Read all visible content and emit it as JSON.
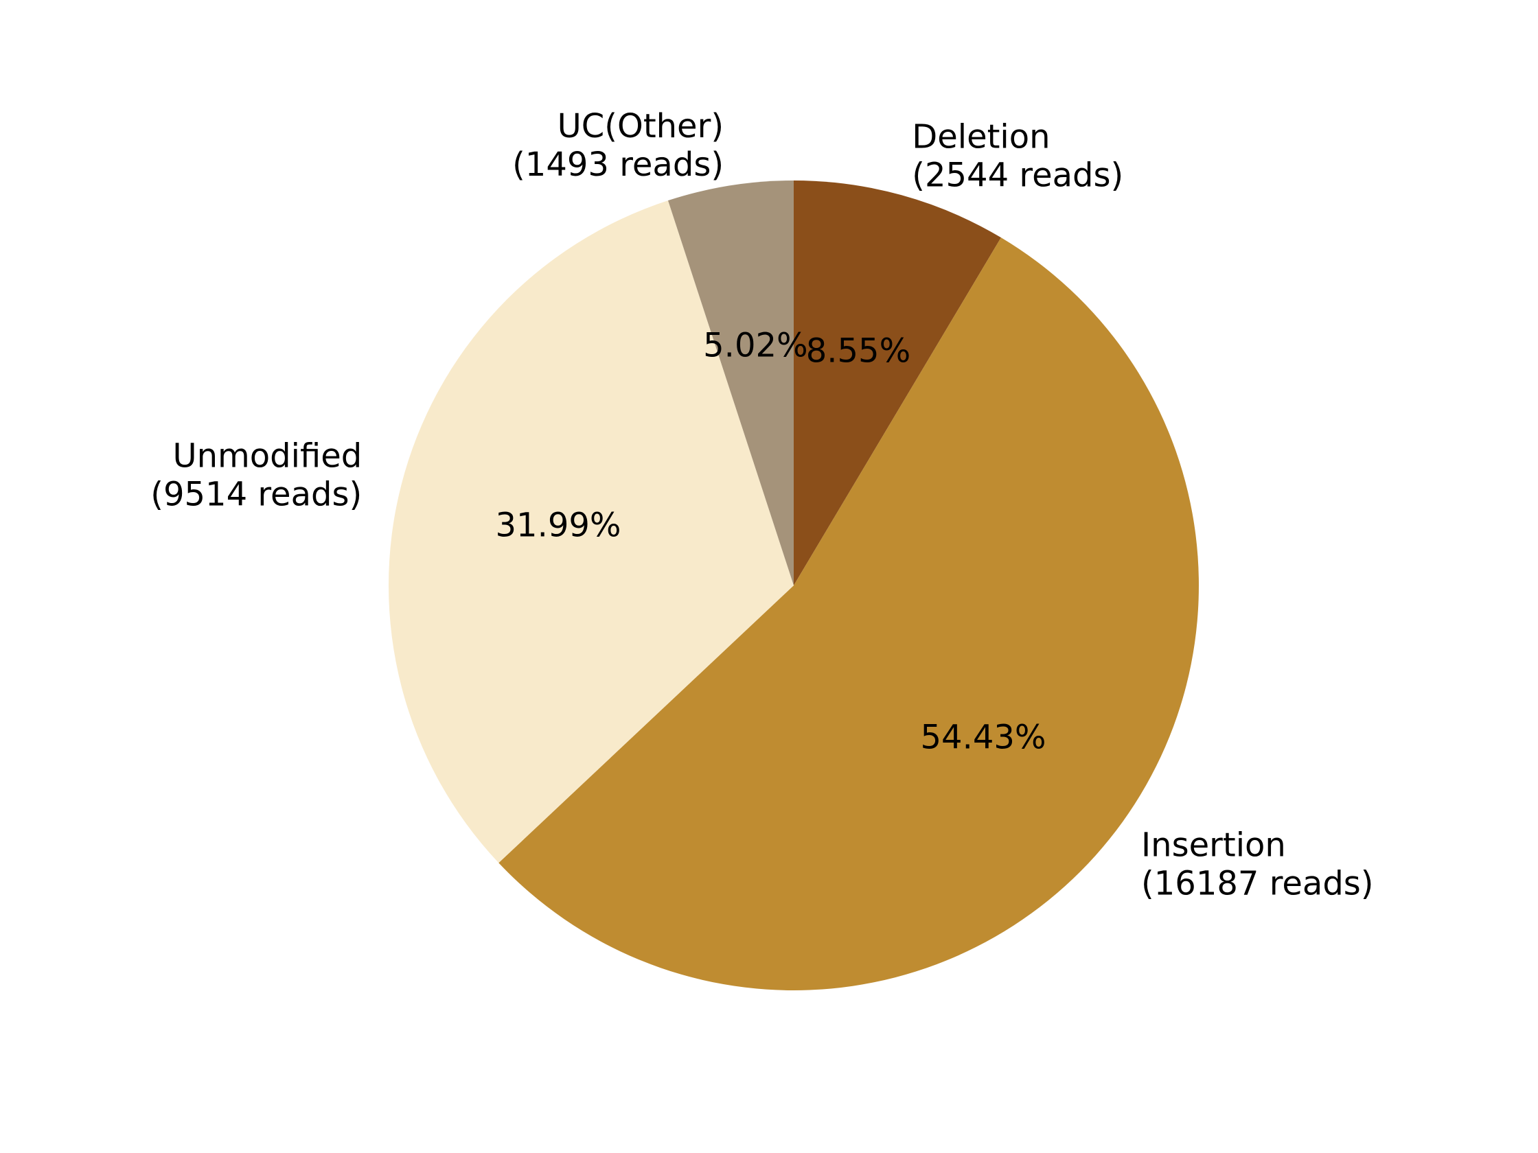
{
  "chart_data": {
    "type": "pie",
    "start_angle_deg": 90,
    "direction": "clockwise",
    "slices": [
      {
        "label": "Deletion",
        "reads_label": "(2544 reads)",
        "reads": 2544,
        "percent": 8.55,
        "percent_label": "8.55%",
        "color": "#8B4F1A"
      },
      {
        "label": "Insertion",
        "reads_label": "(16187 reads)",
        "reads": 16187,
        "percent": 54.43,
        "percent_label": "54.43%",
        "color": "#BF8C31"
      },
      {
        "label": "Unmodified",
        "reads_label": "(9514 reads)",
        "reads": 9514,
        "percent": 31.99,
        "percent_label": "31.99%",
        "color": "#F8EACB"
      },
      {
        "label": "UC(Other)",
        "reads_label": "(1493 reads)",
        "reads": 1493,
        "percent": 5.02,
        "percent_label": "5.02%",
        "color": "#A5937A"
      }
    ]
  }
}
